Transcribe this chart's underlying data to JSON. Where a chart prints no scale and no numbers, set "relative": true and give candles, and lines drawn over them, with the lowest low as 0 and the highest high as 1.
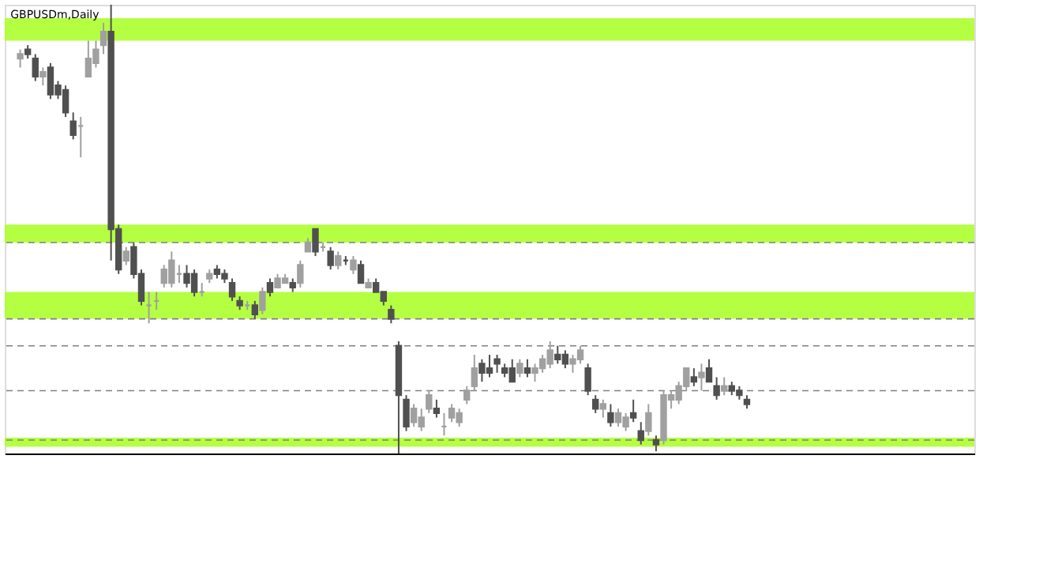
{
  "chart_data": {
    "type": "candlestick",
    "title": "GBPUSDm,Daily",
    "relative": true,
    "categories": [
      null,
      null,
      null,
      null,
      null,
      null,
      null,
      null,
      null,
      null,
      null,
      null,
      null,
      null,
      null,
      null,
      null,
      null,
      null,
      null,
      null,
      null,
      null,
      null,
      null,
      null,
      null,
      null,
      null,
      null,
      null,
      null,
      null,
      null,
      null,
      null,
      null,
      null,
      null,
      null,
      null,
      null,
      null,
      null,
      null,
      null,
      null,
      null,
      null,
      null,
      null,
      null,
      null,
      null,
      null,
      null,
      null,
      null,
      null,
      null,
      null,
      null,
      null,
      null,
      null,
      null,
      null,
      null,
      null,
      null,
      null,
      null,
      null,
      null,
      null,
      null,
      null,
      null,
      null,
      null,
      null,
      null,
      null,
      null,
      null,
      null,
      null,
      null,
      null,
      null,
      null,
      null,
      null,
      null,
      null,
      null,
      null
    ],
    "ohlc": [
      [
        0.88,
        0.9,
        0.86,
        0.89
      ],
      [
        0.9,
        0.91,
        0.88,
        0.89
      ],
      [
        0.88,
        0.89,
        0.83,
        0.84
      ],
      [
        0.84,
        0.86,
        0.82,
        0.85
      ],
      [
        0.86,
        0.87,
        0.79,
        0.8
      ],
      [
        0.82,
        0.83,
        0.79,
        0.8
      ],
      [
        0.81,
        0.82,
        0.75,
        0.76
      ],
      [
        0.74,
        0.76,
        0.7,
        0.71
      ],
      [
        0.73,
        0.75,
        0.66,
        0.73
      ],
      [
        0.84,
        0.92,
        0.84,
        0.88
      ],
      [
        0.87,
        0.92,
        0.86,
        0.9
      ],
      [
        0.91,
        0.96,
        0.89,
        0.94
      ],
      [
        0.94,
        1.0,
        0.43,
        0.5
      ],
      [
        0.5,
        0.51,
        0.4,
        0.41
      ],
      [
        0.43,
        0.46,
        0.42,
        0.45
      ],
      [
        0.46,
        0.47,
        0.39,
        0.4
      ],
      [
        0.4,
        0.41,
        0.33,
        0.34
      ],
      [
        0.33,
        0.36,
        0.29,
        0.33
      ],
      [
        0.34,
        0.36,
        0.32,
        0.34
      ],
      [
        0.38,
        0.42,
        0.37,
        0.41
      ],
      [
        0.38,
        0.45,
        0.37,
        0.43
      ],
      [
        0.4,
        0.42,
        0.38,
        0.4
      ],
      [
        0.4,
        0.42,
        0.37,
        0.38
      ],
      [
        0.4,
        0.41,
        0.35,
        0.36
      ],
      [
        0.36,
        0.38,
        0.35,
        0.36
      ],
      [
        0.39,
        0.41,
        0.38,
        0.4
      ],
      [
        0.41,
        0.42,
        0.39,
        0.4
      ],
      [
        0.4,
        0.41,
        0.38,
        0.39
      ],
      [
        0.38,
        0.39,
        0.34,
        0.35
      ],
      [
        0.34,
        0.35,
        0.32,
        0.33
      ],
      [
        0.33,
        0.34,
        0.32,
        0.33
      ],
      [
        0.33,
        0.34,
        0.3,
        0.31
      ],
      [
        0.32,
        0.37,
        0.31,
        0.36
      ],
      [
        0.38,
        0.39,
        0.35,
        0.36
      ],
      [
        0.37,
        0.4,
        0.37,
        0.39
      ],
      [
        0.38,
        0.4,
        0.38,
        0.39
      ],
      [
        0.38,
        0.39,
        0.36,
        0.37
      ],
      [
        0.38,
        0.43,
        0.37,
        0.42
      ],
      [
        0.45,
        0.48,
        0.45,
        0.47
      ],
      [
        0.5,
        0.5,
        0.44,
        0.45
      ],
      [
        0.46,
        0.47,
        0.45,
        0.46
      ],
      [
        0.45,
        0.46,
        0.41,
        0.42
      ],
      [
        0.42,
        0.45,
        0.41,
        0.44
      ],
      [
        0.43,
        0.44,
        0.42,
        0.43
      ],
      [
        0.41,
        0.44,
        0.4,
        0.43
      ],
      [
        0.42,
        0.43,
        0.38,
        0.38
      ],
      [
        0.37,
        0.39,
        0.37,
        0.38
      ],
      [
        0.38,
        0.39,
        0.36,
        0.36
      ],
      [
        0.36,
        0.36,
        0.33,
        0.34
      ],
      [
        0.32,
        0.33,
        0.29,
        0.3
      ],
      [
        0.24,
        0.25,
        0.0,
        0.13
      ],
      [
        0.12,
        0.13,
        0.05,
        0.06
      ],
      [
        0.07,
        0.11,
        0.06,
        0.1
      ],
      [
        0.06,
        0.1,
        0.05,
        0.08
      ],
      [
        0.1,
        0.14,
        0.09,
        0.13
      ],
      [
        0.1,
        0.12,
        0.08,
        0.09
      ],
      [
        0.06,
        0.09,
        0.04,
        0.06
      ],
      [
        0.08,
        0.11,
        0.07,
        0.1
      ],
      [
        0.07,
        0.1,
        0.06,
        0.09
      ],
      [
        0.12,
        0.15,
        0.11,
        0.14
      ],
      [
        0.15,
        0.22,
        0.14,
        0.19
      ],
      [
        0.2,
        0.21,
        0.16,
        0.18
      ],
      [
        0.19,
        0.22,
        0.17,
        0.18
      ],
      [
        0.21,
        0.22,
        0.18,
        0.2
      ],
      [
        0.19,
        0.2,
        0.17,
        0.18
      ],
      [
        0.19,
        0.21,
        0.16,
        0.16
      ],
      [
        0.18,
        0.21,
        0.17,
        0.2
      ],
      [
        0.19,
        0.21,
        0.17,
        0.18
      ],
      [
        0.18,
        0.2,
        0.16,
        0.19
      ],
      [
        0.19,
        0.22,
        0.18,
        0.21
      ],
      [
        0.2,
        0.25,
        0.19,
        0.23
      ],
      [
        0.22,
        0.24,
        0.2,
        0.21
      ],
      [
        0.22,
        0.23,
        0.19,
        0.2
      ],
      [
        0.2,
        0.22,
        0.18,
        0.21
      ],
      [
        0.21,
        0.24,
        0.2,
        0.23
      ],
      [
        0.19,
        0.2,
        0.13,
        0.14
      ],
      [
        0.12,
        0.13,
        0.09,
        0.1
      ],
      [
        0.1,
        0.12,
        0.08,
        0.11
      ],
      [
        0.09,
        0.11,
        0.06,
        0.07
      ],
      [
        0.07,
        0.1,
        0.06,
        0.09
      ],
      [
        0.06,
        0.09,
        0.05,
        0.08
      ],
      [
        0.09,
        0.12,
        0.07,
        0.08
      ],
      [
        0.05,
        0.07,
        0.02,
        0.03
      ],
      [
        0.05,
        0.11,
        0.04,
        0.09
      ],
      [
        0.03,
        0.04,
        0.005,
        0.02
      ],
      [
        0.03,
        0.14,
        0.02,
        0.13
      ],
      [
        0.12,
        0.14,
        0.1,
        0.13
      ],
      [
        0.12,
        0.16,
        0.11,
        0.15
      ],
      [
        0.15,
        0.19,
        0.14,
        0.19
      ],
      [
        0.17,
        0.19,
        0.15,
        0.16
      ],
      [
        0.17,
        0.2,
        0.14,
        0.18
      ],
      [
        0.19,
        0.21,
        0.16,
        0.16
      ],
      [
        0.15,
        0.17,
        0.12,
        0.13
      ],
      [
        0.14,
        0.17,
        0.13,
        0.15
      ],
      [
        0.15,
        0.16,
        0.13,
        0.14
      ],
      [
        0.14,
        0.15,
        0.12,
        0.13
      ],
      [
        0.12,
        0.13,
        0.1,
        0.11
      ]
    ],
    "colors": [
      "#a0a0a0",
      "#505050",
      "#505050",
      "#a0a0a0",
      "#505050",
      "#505050",
      "#505050",
      "#505050",
      "#a0a0a0",
      "#a0a0a0",
      "#a0a0a0",
      "#a0a0a0",
      "#505050",
      "#505050",
      "#a0a0a0",
      "#505050",
      "#505050",
      "#a0a0a0",
      "#a0a0a0",
      "#a0a0a0",
      "#a0a0a0",
      "#a0a0a0",
      "#505050",
      "#505050",
      "#a0a0a0",
      "#a0a0a0",
      "#505050",
      "#505050",
      "#505050",
      "#505050",
      "#a0a0a0",
      "#505050",
      "#a0a0a0",
      "#505050",
      "#a0a0a0",
      "#a0a0a0",
      "#505050",
      "#a0a0a0",
      "#a0a0a0",
      "#505050",
      "#a0a0a0",
      "#505050",
      "#a0a0a0",
      "#505050",
      "#a0a0a0",
      "#505050",
      "#a0a0a0",
      "#505050",
      "#505050",
      "#505050",
      "#505050",
      "#505050",
      "#a0a0a0",
      "#a0a0a0",
      "#a0a0a0",
      "#505050",
      "#a0a0a0",
      "#a0a0a0",
      "#a0a0a0",
      "#a0a0a0",
      "#a0a0a0",
      "#505050",
      "#505050",
      "#505050",
      "#505050",
      "#505050",
      "#a0a0a0",
      "#505050",
      "#a0a0a0",
      "#a0a0a0",
      "#a0a0a0",
      "#505050",
      "#505050",
      "#a0a0a0",
      "#a0a0a0",
      "#505050",
      "#505050",
      "#a0a0a0",
      "#505050",
      "#a0a0a0",
      "#a0a0a0",
      "#505050",
      "#505050",
      "#a0a0a0",
      "#505050",
      "#a0a0a0",
      "#a0a0a0",
      "#a0a0a0",
      "#a0a0a0",
      "#505050",
      "#a0a0a0",
      "#505050",
      "#505050",
      "#a0a0a0",
      "#505050",
      "#505050",
      "#505050"
    ],
    "ref_lines": [
      {
        "axis": "y",
        "value": 0.47,
        "color": "#808080",
        "line_style": "dashed"
      },
      {
        "axis": "y",
        "value": 0.3,
        "color": "#808080",
        "line_style": "dashed"
      },
      {
        "axis": "y",
        "value": 0.24,
        "color": "#808080",
        "line_style": "dashed"
      },
      {
        "axis": "y",
        "value": 0.14,
        "color": "#808080",
        "line_style": "dashed"
      },
      {
        "axis": "y",
        "value": 0.03,
        "color": "#808080",
        "line_style": "dashed"
      }
    ],
    "bands": [
      {
        "axis": "y",
        "from": 0.92,
        "to": 0.97,
        "color": "#adff2f"
      },
      {
        "axis": "y",
        "from": 0.47,
        "to": 0.51,
        "color": "#adff2f"
      },
      {
        "axis": "y",
        "from": 0.3,
        "to": 0.36,
        "color": "#adff2f"
      },
      {
        "axis": "y",
        "from": 0.015,
        "to": 0.035,
        "color": "#adff2f"
      }
    ]
  }
}
